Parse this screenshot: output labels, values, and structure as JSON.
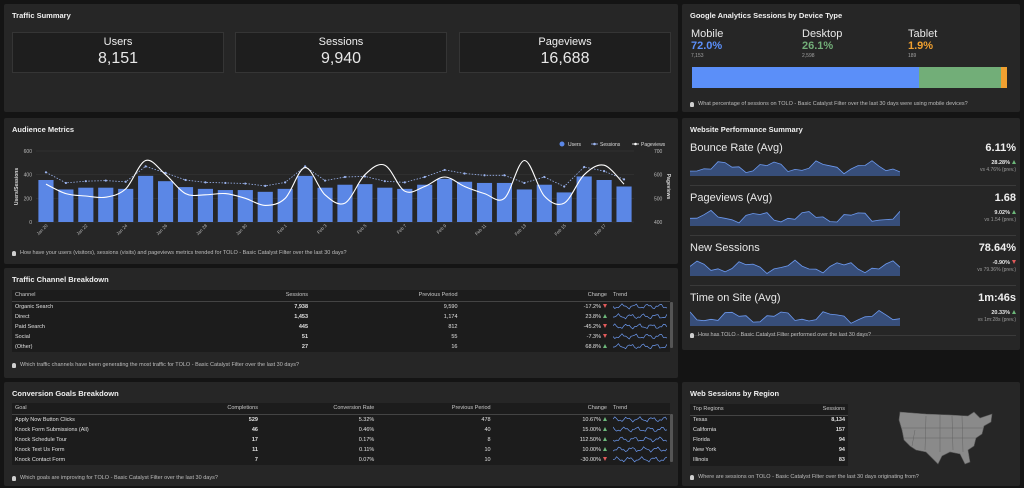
{
  "colors": {
    "blue": "#5b8ff9",
    "green": "#72ae78",
    "orange": "#f0a030",
    "bar": "#5b87e6"
  },
  "traffic_summary": {
    "title": "Traffic Summary",
    "kpis": [
      {
        "label": "Users",
        "value": "8,151"
      },
      {
        "label": "Sessions",
        "value": "9,940"
      },
      {
        "label": "Pageviews",
        "value": "16,688"
      }
    ]
  },
  "device": {
    "title": "Google Analytics Sessions by Device Type",
    "items": [
      {
        "name": "Mobile",
        "pct": "72.0%",
        "count": "7,153",
        "share": 72.0,
        "color": "#5b8ff9"
      },
      {
        "name": "Desktop",
        "pct": "26.1%",
        "count": "2,598",
        "share": 26.1,
        "color": "#72ae78"
      },
      {
        "name": "Tablet",
        "pct": "1.9%",
        "count": "189",
        "share": 1.9,
        "color": "#f0a030"
      }
    ],
    "note": "What percentage of sessions on TOLO - Basic Catalyst Filter over the last 30 days were using mobile devices?"
  },
  "audience": {
    "title": "Audience Metrics",
    "note": "How have your users (visitors), sessions (visits) and pageviews metrics trended for TOLO - Basic Catalyst Filter over the last 30 days?"
  },
  "chart_data": {
    "type": "bar",
    "legend": [
      "Users",
      "Sessions",
      "Pageviews"
    ],
    "legend_position": "top-right",
    "ylabel": "Users/Sessions",
    "y2label": "Pageviews",
    "y_ticks": [
      "600",
      "400",
      "200",
      "0"
    ],
    "y2_ticks": [
      "700",
      "600",
      "500",
      "400"
    ],
    "ylim": [
      0,
      600
    ],
    "y2lim": [
      400,
      700
    ],
    "x_ticks": [
      "Jan 20",
      "Jan 22",
      "Jan 24",
      "Jan 26",
      "Jan 28",
      "Jan 30",
      "Feb 1",
      "Feb 3",
      "Feb 5",
      "Feb 7",
      "Feb 9",
      "Feb 11",
      "Feb 13",
      "Feb 15",
      "Feb 17"
    ],
    "users": [
      355,
      275,
      290,
      290,
      280,
      390,
      345,
      295,
      280,
      270,
      270,
      255,
      280,
      390,
      290,
      315,
      320,
      290,
      280,
      315,
      365,
      340,
      330,
      330,
      275,
      315,
      250,
      385,
      355,
      300
    ],
    "sessions": [
      420,
      330,
      345,
      350,
      340,
      470,
      415,
      355,
      335,
      330,
      325,
      305,
      335,
      470,
      350,
      380,
      385,
      345,
      335,
      380,
      440,
      410,
      395,
      395,
      330,
      380,
      300,
      465,
      430,
      360
    ],
    "pageviews": [
      560,
      520,
      510,
      505,
      540,
      660,
      600,
      520,
      515,
      520,
      500,
      470,
      500,
      630,
      515,
      480,
      600,
      640,
      530,
      550,
      590,
      550,
      520,
      500,
      660,
      510,
      480,
      600,
      640,
      560
    ]
  },
  "perf": {
    "title": "Website Performance Summary",
    "rows": [
      {
        "name": "Bounce Rate (Avg)",
        "value": "6.11%",
        "change": "28.28%",
        "dir": "up",
        "prev": "vs 4.76% (prev.)"
      },
      {
        "name": "Pageviews (Avg)",
        "value": "1.68",
        "change": "9.02%",
        "dir": "up",
        "prev": "vs 1.54 (prev.)"
      },
      {
        "name": "New Sessions",
        "value": "78.64%",
        "change": "-0.90%",
        "dir": "down",
        "prev": "vs 79.36% (prev.)"
      },
      {
        "name": "Time on Site (Avg)",
        "value": "1m:46s",
        "change": "20.33%",
        "dir": "up",
        "prev": "vs 1m:28s (prev.)"
      }
    ],
    "note": "How has TOLO - Basic Catalyst Filter performed over the last 30 days?"
  },
  "traffic_channel": {
    "title": "Traffic Channel Breakdown",
    "headers": [
      "Channel",
      "Sessions",
      "Previous Period",
      "Change",
      "Trend"
    ],
    "rows": [
      {
        "channel": "Organic Search",
        "sessions": "7,938",
        "prev": "9,590",
        "change": "-17.2%",
        "dir": "down"
      },
      {
        "channel": "Direct",
        "sessions": "1,453",
        "prev": "1,174",
        "change": "23.8%",
        "dir": "up"
      },
      {
        "channel": "Paid Search",
        "sessions": "445",
        "prev": "812",
        "change": "-45.2%",
        "dir": "down"
      },
      {
        "channel": "Social",
        "sessions": "51",
        "prev": "55",
        "change": "-7.3%",
        "dir": "down"
      },
      {
        "channel": "(Other)",
        "sessions": "27",
        "prev": "16",
        "change": "68.8%",
        "dir": "up"
      }
    ],
    "note": "Which traffic channels have been generating the most traffic for TOLO - Basic Catalyst Filter over the last 30 days?"
  },
  "conversion": {
    "title": "Conversion Goals Breakdown",
    "headers": [
      "Goal",
      "Completions",
      "Conversion Rate",
      "Previous Period",
      "Change",
      "Trend"
    ],
    "rows": [
      {
        "goal": "Apply Now Button Clicks",
        "completions": "529",
        "rate": "5.32%",
        "prev": "478",
        "change": "10.67%",
        "dir": "up"
      },
      {
        "goal": "Knock Form Submissions (All)",
        "completions": "46",
        "rate": "0.46%",
        "prev": "40",
        "change": "15.00%",
        "dir": "up"
      },
      {
        "goal": "Knock Schedule Tour",
        "completions": "17",
        "rate": "0.17%",
        "prev": "8",
        "change": "112.50%",
        "dir": "up"
      },
      {
        "goal": "Knock Text Us Form",
        "completions": "11",
        "rate": "0.11%",
        "prev": "10",
        "change": "10.00%",
        "dir": "up"
      },
      {
        "goal": "Knock Contact Form",
        "completions": "7",
        "rate": "0.07%",
        "prev": "10",
        "change": "-30.00%",
        "dir": "down"
      }
    ],
    "note": "Which goals are improving for TOLO - Basic Catalyst Filter over the last 30 days?"
  },
  "region": {
    "title": "Web Sessions by Region",
    "headers": [
      "Top Regions",
      "Sessions"
    ],
    "rows": [
      {
        "region": "Texas",
        "sessions": "8,134"
      },
      {
        "region": "California",
        "sessions": "157"
      },
      {
        "region": "Florida",
        "sessions": "94"
      },
      {
        "region": "New York",
        "sessions": "94"
      },
      {
        "region": "Illinois",
        "sessions": "83"
      }
    ],
    "note": "Where are sessions on TOLO - Basic Catalyst Filter over the last 30 days originating from?"
  }
}
